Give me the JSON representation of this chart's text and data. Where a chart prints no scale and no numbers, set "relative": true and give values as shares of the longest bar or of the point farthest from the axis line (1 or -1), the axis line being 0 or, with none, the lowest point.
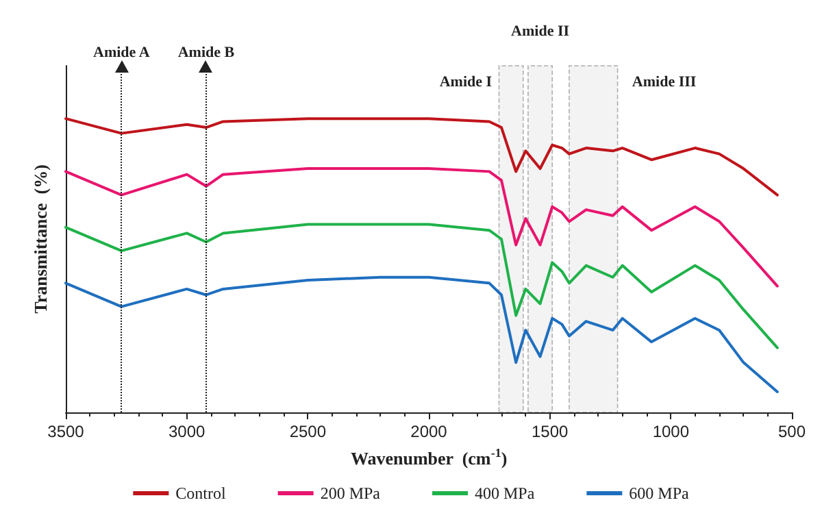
{
  "chart_data": {
    "type": "line",
    "relative": true,
    "xlabel": "Wavenumber  (cm$^{-1}$)",
    "ylabel": "Transmittance  (%)",
    "x": [
      3500,
      3270,
      3000,
      2920,
      2850,
      2500,
      2200,
      2000,
      1750,
      1700,
      1640,
      1600,
      1540,
      1490,
      1450,
      1420,
      1350,
      1240,
      1200,
      1080,
      900,
      800,
      700,
      560
    ],
    "xlim": [
      3500,
      500
    ],
    "xticks": [
      3500,
      3000,
      2500,
      2000,
      1500,
      1000,
      500
    ],
    "series": [
      {
        "name": "Control",
        "color": "#c0141b",
        "values": [
          1.0,
          0.95,
          0.98,
          0.97,
          0.99,
          1.0,
          1.0,
          1.0,
          0.99,
          0.97,
          0.82,
          0.89,
          0.83,
          0.91,
          0.9,
          0.88,
          0.9,
          0.89,
          0.9,
          0.86,
          0.9,
          0.88,
          0.83,
          0.74
        ]
      },
      {
        "name": "200 MPa",
        "color": "#e8156e",
        "values": [
          0.82,
          0.74,
          0.81,
          0.77,
          0.81,
          0.83,
          0.83,
          0.83,
          0.82,
          0.79,
          0.57,
          0.66,
          0.57,
          0.7,
          0.68,
          0.65,
          0.69,
          0.67,
          0.7,
          0.62,
          0.7,
          0.65,
          0.56,
          0.43
        ]
      },
      {
        "name": "400 MPa",
        "color": "#1fb24a",
        "values": [
          0.63,
          0.55,
          0.61,
          0.58,
          0.61,
          0.64,
          0.64,
          0.64,
          0.62,
          0.59,
          0.33,
          0.42,
          0.37,
          0.51,
          0.48,
          0.44,
          0.5,
          0.46,
          0.5,
          0.41,
          0.5,
          0.45,
          0.35,
          0.22
        ]
      },
      {
        "name": "600 MPa",
        "color": "#1f6fbf",
        "values": [
          0.44,
          0.36,
          0.42,
          0.4,
          0.42,
          0.45,
          0.46,
          0.46,
          0.44,
          0.4,
          0.17,
          0.28,
          0.19,
          0.32,
          0.3,
          0.26,
          0.31,
          0.28,
          0.32,
          0.24,
          0.32,
          0.28,
          0.17,
          0.07
        ]
      }
    ],
    "ref_lines": [
      {
        "axis": "x",
        "value": 3270,
        "label": "Amide A",
        "line_style": "dotted"
      },
      {
        "axis": "x",
        "value": 2920,
        "label": "Amide B",
        "line_style": "dotted"
      }
    ],
    "bands": [
      {
        "axis": "x",
        "from": 1710,
        "to": 1610,
        "label": "Amide I",
        "color": "#dddddd"
      },
      {
        "axis": "x",
        "from": 1590,
        "to": 1490,
        "label": "Amide II",
        "color": "#dddddd"
      },
      {
        "axis": "x",
        "from": 1420,
        "to": 1220,
        "label": "Amide III",
        "color": "#dddddd"
      }
    ],
    "legend": "bottom",
    "grid": false,
    "marker": "none",
    "line_style": "solid"
  }
}
